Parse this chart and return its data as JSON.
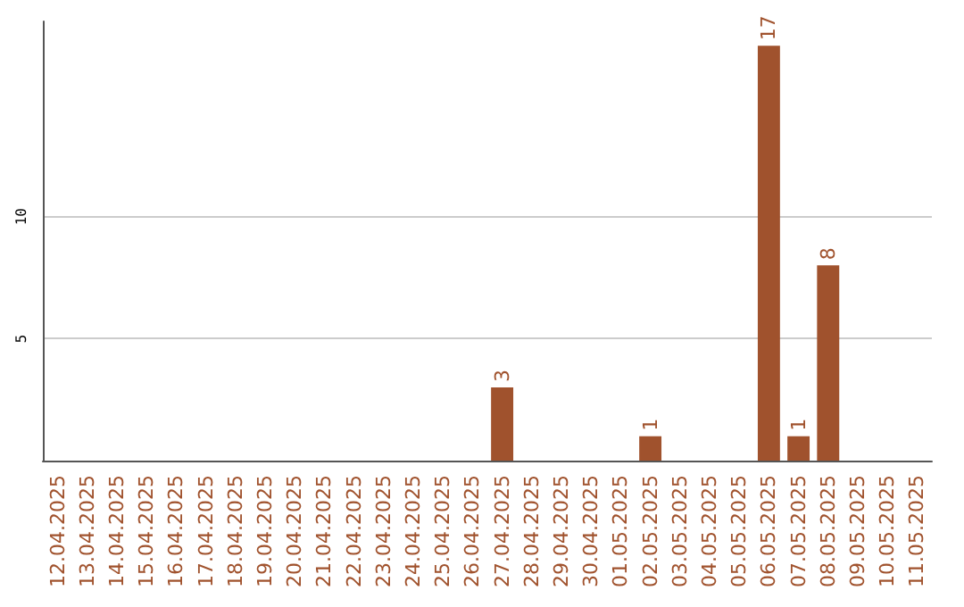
{
  "chart_data": {
    "type": "bar",
    "categories": [
      "12.04.2025",
      "13.04.2025",
      "14.04.2025",
      "15.04.2025",
      "16.04.2025",
      "17.04.2025",
      "18.04.2025",
      "19.04.2025",
      "20.04.2025",
      "21.04.2025",
      "22.04.2025",
      "23.04.2025",
      "24.04.2025",
      "25.04.2025",
      "26.04.2025",
      "27.04.2025",
      "28.04.2025",
      "29.04.2025",
      "30.04.2025",
      "01.05.2025",
      "02.05.2025",
      "03.05.2025",
      "04.05.2025",
      "05.05.2025",
      "06.05.2025",
      "07.05.2025",
      "08.05.2025",
      "09.05.2025",
      "10.05.2025",
      "11.05.2025"
    ],
    "values": [
      0,
      0,
      0,
      0,
      0,
      0,
      0,
      0,
      0,
      0,
      0,
      0,
      0,
      0,
      0,
      3,
      0,
      0,
      0,
      0,
      1,
      0,
      0,
      0,
      17,
      1,
      8,
      0,
      0,
      0
    ],
    "value_labels": [
      null,
      null,
      null,
      null,
      null,
      null,
      null,
      null,
      null,
      null,
      null,
      null,
      null,
      null,
      null,
      "3",
      null,
      null,
      null,
      null,
      "1",
      null,
      null,
      null,
      "17",
      "1",
      "8",
      null,
      null,
      null
    ],
    "color": "#a0522d",
    "ylim": [
      0,
      18
    ],
    "yticks": [
      5,
      10
    ],
    "grid": "y"
  }
}
